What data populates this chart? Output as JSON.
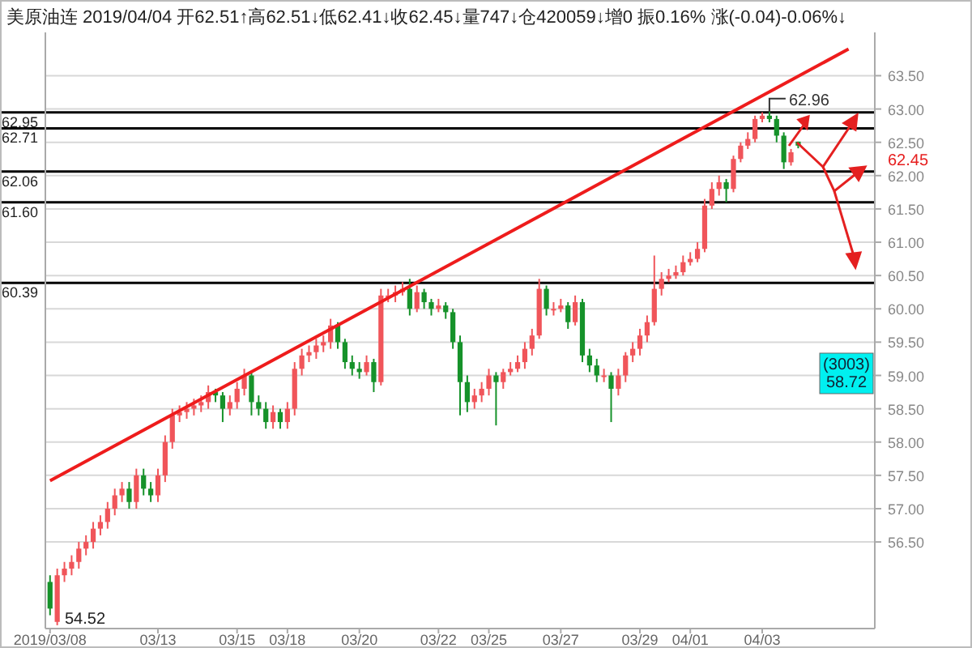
{
  "chart_data": {
    "type": "candlestick",
    "title": "美原油连 2019/04/04 开62.51↑高62.51↓低62.41↓收62.45↓量747↓仓420059↓增0 振0.16% 涨(-0.04)-0.06%↓",
    "categories": [
      "2019/03/08",
      null,
      null,
      null,
      null,
      null,
      null,
      null,
      null,
      null,
      null,
      null,
      null,
      null,
      null,
      "03/13",
      null,
      null,
      null,
      null,
      null,
      null,
      null,
      null,
      null,
      null,
      "03/15",
      null,
      null,
      null,
      null,
      null,
      null,
      "03/18",
      null,
      null,
      null,
      null,
      null,
      null,
      null,
      null,
      null,
      "03/20",
      null,
      null,
      null,
      null,
      null,
      null,
      null,
      null,
      null,
      null,
      "03/22",
      null,
      null,
      null,
      null,
      null,
      null,
      "03/25",
      null,
      null,
      null,
      null,
      null,
      null,
      null,
      null,
      null,
      "03/27",
      null,
      null,
      null,
      null,
      null,
      null,
      null,
      null,
      null,
      null,
      "03/29",
      null,
      null,
      null,
      null,
      null,
      null,
      "04/01",
      null,
      null,
      null,
      null,
      null,
      null,
      null,
      null,
      null,
      "04/03",
      null,
      null,
      null,
      null,
      null,
      null,
      null,
      null,
      null,
      null,
      null,
      null,
      null,
      null,
      null
    ],
    "ohlc": [
      [
        55.9,
        56.0,
        55.4,
        55.5
      ],
      [
        55.3,
        56.1,
        55.25,
        56.0
      ],
      [
        56.0,
        56.2,
        55.9,
        56.1
      ],
      [
        56.1,
        56.3,
        56.0,
        56.2
      ],
      [
        56.2,
        56.5,
        56.1,
        56.4
      ],
      [
        56.4,
        56.6,
        56.3,
        56.5
      ],
      [
        56.5,
        56.8,
        56.4,
        56.7
      ],
      [
        56.7,
        56.9,
        56.6,
        56.8
      ],
      [
        56.8,
        57.1,
        56.7,
        57.0
      ],
      [
        57.0,
        57.3,
        56.9,
        57.2
      ],
      [
        57.2,
        57.4,
        57.1,
        57.3
      ],
      [
        57.3,
        57.4,
        57.0,
        57.1
      ],
      [
        57.1,
        57.6,
        57.0,
        57.5
      ],
      [
        57.5,
        57.6,
        57.2,
        57.3
      ],
      [
        57.3,
        57.4,
        57.1,
        57.2
      ],
      [
        57.2,
        57.6,
        57.1,
        57.5
      ],
      [
        57.5,
        58.1,
        57.4,
        58.0
      ],
      [
        58.0,
        58.5,
        57.9,
        58.4
      ],
      [
        58.4,
        58.55,
        58.3,
        58.45
      ],
      [
        58.45,
        58.6,
        58.35,
        58.5
      ],
      [
        58.5,
        58.65,
        58.4,
        58.55
      ],
      [
        58.55,
        58.7,
        58.45,
        58.6
      ],
      [
        58.6,
        58.85,
        58.5,
        58.75
      ],
      [
        58.75,
        58.8,
        58.6,
        58.7
      ],
      [
        58.7,
        58.75,
        58.3,
        58.5
      ],
      [
        58.5,
        58.7,
        58.4,
        58.6
      ],
      [
        58.6,
        58.9,
        58.5,
        58.8
      ],
      [
        58.8,
        59.1,
        58.7,
        59.0
      ],
      [
        59.0,
        59.05,
        58.4,
        58.6
      ],
      [
        58.6,
        58.7,
        58.4,
        58.5
      ],
      [
        58.5,
        58.6,
        58.2,
        58.3
      ],
      [
        58.3,
        58.55,
        58.2,
        58.45
      ],
      [
        58.45,
        58.5,
        58.2,
        58.3
      ],
      [
        58.3,
        58.6,
        58.2,
        58.5
      ],
      [
        58.5,
        59.2,
        58.4,
        59.1
      ],
      [
        59.1,
        59.4,
        59.0,
        59.3
      ],
      [
        59.3,
        59.45,
        59.2,
        59.35
      ],
      [
        59.35,
        59.55,
        59.25,
        59.45
      ],
      [
        59.45,
        59.6,
        59.35,
        59.5
      ],
      [
        59.5,
        59.85,
        59.4,
        59.75
      ],
      [
        59.75,
        59.8,
        59.4,
        59.5
      ],
      [
        59.5,
        59.55,
        59.1,
        59.2
      ],
      [
        59.2,
        59.3,
        59.0,
        59.1
      ],
      [
        59.1,
        59.2,
        58.95,
        59.05
      ],
      [
        59.05,
        59.3,
        59.0,
        59.2
      ],
      [
        59.2,
        59.25,
        58.75,
        58.9
      ],
      [
        58.9,
        60.3,
        58.85,
        60.2
      ],
      [
        60.2,
        60.3,
        60.1,
        60.2
      ],
      [
        60.2,
        60.35,
        60.1,
        60.25
      ],
      [
        60.25,
        60.4,
        60.2,
        60.3
      ],
      [
        60.3,
        60.45,
        59.9,
        60.0
      ],
      [
        60.0,
        60.35,
        59.95,
        60.25
      ],
      [
        60.25,
        60.3,
        60.0,
        60.1
      ],
      [
        60.1,
        60.15,
        59.9,
        60.0
      ],
      [
        60.0,
        60.15,
        59.95,
        60.05
      ],
      [
        60.05,
        60.1,
        59.85,
        59.95
      ],
      [
        59.95,
        60.0,
        59.4,
        59.5
      ],
      [
        59.5,
        59.6,
        58.4,
        58.9
      ],
      [
        58.9,
        59.0,
        58.45,
        58.6
      ],
      [
        58.6,
        58.8,
        58.5,
        58.7
      ],
      [
        58.7,
        58.9,
        58.6,
        58.8
      ],
      [
        58.8,
        59.1,
        58.7,
        59.0
      ],
      [
        59.0,
        59.05,
        58.25,
        58.9
      ],
      [
        58.9,
        59.1,
        58.8,
        59.05
      ],
      [
        59.05,
        59.2,
        59.0,
        59.1
      ],
      [
        59.1,
        59.3,
        59.05,
        59.2
      ],
      [
        59.2,
        59.5,
        59.1,
        59.4
      ],
      [
        59.4,
        59.7,
        59.3,
        59.6
      ],
      [
        59.6,
        60.45,
        59.55,
        60.3
      ],
      [
        60.3,
        60.35,
        59.9,
        60.0
      ],
      [
        60.0,
        60.1,
        59.9,
        60.0
      ],
      [
        60.0,
        60.15,
        59.95,
        60.05
      ],
      [
        60.05,
        60.1,
        59.7,
        59.8
      ],
      [
        59.8,
        60.2,
        59.75,
        60.1
      ],
      [
        60.1,
        60.15,
        59.2,
        59.3
      ],
      [
        59.3,
        59.4,
        59.05,
        59.15
      ],
      [
        59.15,
        59.25,
        58.9,
        59.0
      ],
      [
        59.0,
        59.1,
        58.9,
        59.0
      ],
      [
        59.0,
        59.05,
        58.3,
        58.8
      ],
      [
        58.8,
        59.1,
        58.7,
        59.0
      ],
      [
        59.0,
        59.35,
        58.9,
        59.3
      ],
      [
        59.3,
        59.5,
        59.2,
        59.4
      ],
      [
        59.4,
        59.7,
        59.3,
        59.6
      ],
      [
        59.6,
        59.9,
        59.5,
        59.8
      ],
      [
        59.8,
        60.8,
        59.75,
        60.3
      ],
      [
        60.3,
        60.55,
        60.2,
        60.45
      ],
      [
        60.45,
        60.6,
        60.4,
        60.5
      ],
      [
        60.5,
        60.65,
        60.45,
        60.55
      ],
      [
        60.55,
        60.8,
        60.5,
        60.7
      ],
      [
        60.7,
        60.85,
        60.65,
        60.75
      ],
      [
        60.75,
        61.0,
        60.7,
        60.9
      ],
      [
        60.9,
        61.65,
        60.85,
        61.55
      ],
      [
        61.55,
        61.9,
        61.5,
        61.8
      ],
      [
        61.8,
        62.0,
        61.7,
        61.9
      ],
      [
        61.9,
        61.95,
        61.6,
        61.8
      ],
      [
        61.8,
        62.3,
        61.75,
        62.25
      ],
      [
        62.25,
        62.5,
        62.2,
        62.45
      ],
      [
        62.45,
        62.65,
        62.4,
        62.55
      ],
      [
        62.55,
        62.9,
        62.5,
        62.85
      ],
      [
        62.85,
        62.95,
        62.8,
        62.9
      ],
      [
        62.9,
        62.96,
        62.8,
        62.85
      ],
      [
        62.85,
        62.9,
        62.5,
        62.6
      ],
      [
        62.6,
        62.65,
        62.1,
        62.2
      ],
      [
        62.2,
        62.4,
        62.15,
        62.35
      ],
      [
        62.51,
        62.51,
        62.41,
        62.45
      ],
      null,
      null,
      null,
      null,
      null,
      null,
      null,
      null,
      null,
      null
    ],
    "series": [
      {
        "type": "line",
        "color": "#ee1c1c",
        "values": [
          57.42,
          null,
          null,
          null,
          null,
          null,
          null,
          null,
          null,
          null,
          null,
          null,
          null,
          null,
          null,
          null,
          null,
          null,
          null,
          null,
          null,
          null,
          null,
          null,
          null,
          null,
          null,
          null,
          null,
          null,
          null,
          null,
          null,
          null,
          null,
          null,
          null,
          null,
          null,
          null,
          null,
          null,
          null,
          null,
          null,
          null,
          null,
          null,
          null,
          null,
          null,
          null,
          null,
          null,
          null,
          null,
          null,
          null,
          null,
          null,
          null,
          null,
          null,
          null,
          null,
          null,
          null,
          null,
          null,
          null,
          null,
          null,
          null,
          null,
          null,
          null,
          null,
          null,
          null,
          null,
          null,
          null,
          null,
          null,
          null,
          null,
          null,
          null,
          null,
          null,
          null,
          null,
          null,
          null,
          null,
          null,
          null,
          null,
          null,
          null,
          null,
          null,
          null,
          null,
          null,
          null,
          null,
          null,
          null,
          null,
          null,
          63.9,
          null,
          null,
          null
        ]
      }
    ],
    "ylim": [
      55.2,
      64.15
    ],
    "yticks": [
      {
        "value": 56.5,
        "label": "56.50"
      },
      {
        "value": 57,
        "label": "57.00"
      },
      {
        "value": 57.5,
        "label": "57.50"
      },
      {
        "value": 58,
        "label": "58.00"
      },
      {
        "value": 58.5,
        "label": "58.50"
      },
      {
        "value": 59,
        "label": "59.00"
      },
      {
        "value": 59.5,
        "label": "59.50"
      },
      {
        "value": 60,
        "label": "60.00"
      },
      {
        "value": 60.5,
        "label": "60.50"
      },
      {
        "value": 61,
        "label": "61.00"
      },
      {
        "value": 61.5,
        "label": "61.50"
      },
      {
        "value": 62,
        "label": "62.00"
      },
      {
        "value": 62.5,
        "label": "62.50"
      },
      {
        "value": 63,
        "label": "63.00"
      },
      {
        "value": 63.5,
        "label": "63.50"
      }
    ],
    "grid": "y",
    "ref_lines": [
      {
        "axis": "y",
        "value": 62.95,
        "label": "62.95",
        "color": "#000000"
      },
      {
        "axis": "y",
        "value": 62.71,
        "label": "62.71",
        "color": "#000000"
      },
      {
        "axis": "y",
        "value": 62.06,
        "label": "62.06",
        "color": "#000000"
      },
      {
        "axis": "y",
        "value": 61.6,
        "label": "61.60",
        "color": "#000000"
      },
      {
        "axis": "y",
        "value": 60.39,
        "label": "60.39",
        "color": "#000000"
      }
    ],
    "annotations": [
      {
        "text": "62.96",
        "y": 62.96
      },
      "54.52",
      "62.45",
      "(3003)",
      "58.72"
    ]
  }
}
